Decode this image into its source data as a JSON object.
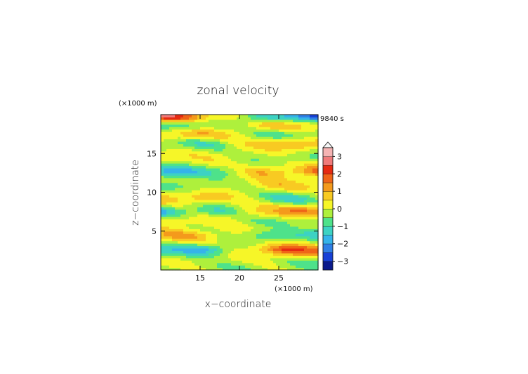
{
  "chart_data": {
    "type": "heatmap",
    "title": "zonal velocity",
    "xlabel": "x−coordinate",
    "ylabel": "z−coordinate",
    "x_unit": "(×1000 m)",
    "y_unit": "(×1000 m)",
    "time_label": "9840 s",
    "xlim": [
      10,
      30
    ],
    "ylim": [
      0,
      20
    ],
    "x_ticks": [
      15,
      20,
      25
    ],
    "y_ticks": [
      5,
      10,
      15
    ],
    "x_tick_labels": [
      "15",
      "20",
      "25"
    ],
    "y_tick_labels": [
      "5",
      "10",
      "15"
    ],
    "colorbar": {
      "min": -3.5,
      "max": 3.5,
      "step": 0.5,
      "extend": "max",
      "ticks": [
        -3,
        -2,
        -1,
        0,
        1,
        2,
        3
      ],
      "tick_labels": [
        "−3",
        "−2",
        "−1",
        "0",
        "1",
        "2",
        "3"
      ],
      "colors": [
        "#0b1a8c",
        "#1640d6",
        "#2f7fe6",
        "#35b3ea",
        "#3dd2c3",
        "#4ee28a",
        "#aef03c",
        "#f6f628",
        "#f8ca22",
        "#f49a1c",
        "#ef6418",
        "#e62a12",
        "#f07a7a",
        "#f5b3b3"
      ]
    },
    "bands": [
      {
        "z": 0.3,
        "left": -0.4,
        "right": -0.4
      },
      {
        "z": 1.0,
        "left": 0.2,
        "right": -0.3
      },
      {
        "z": 2.6,
        "left": -2.4,
        "right": 2.5
      },
      {
        "z": 4.5,
        "left": 1.2,
        "right": -1.6
      },
      {
        "z": 6.3,
        "left": 0.6,
        "right": -0.8
      },
      {
        "z": 7.6,
        "left": -1.8,
        "right": 1.8
      },
      {
        "z": 9.3,
        "left": 1.3,
        "right": -1.3
      },
      {
        "z": 11.0,
        "left": -0.8,
        "right": 0.9
      },
      {
        "z": 12.7,
        "left": -2.1,
        "right": 1.8
      },
      {
        "z": 14.5,
        "left": 0.5,
        "right": -0.6
      },
      {
        "z": 16.2,
        "left": -1.2,
        "right": 1.4
      },
      {
        "z": 17.5,
        "left": 1.3,
        "right": -1.0
      },
      {
        "z": 18.7,
        "left": -1.3,
        "right": 1.3
      },
      {
        "z": 19.8,
        "left": 2.6,
        "right": -3.0
      }
    ]
  }
}
